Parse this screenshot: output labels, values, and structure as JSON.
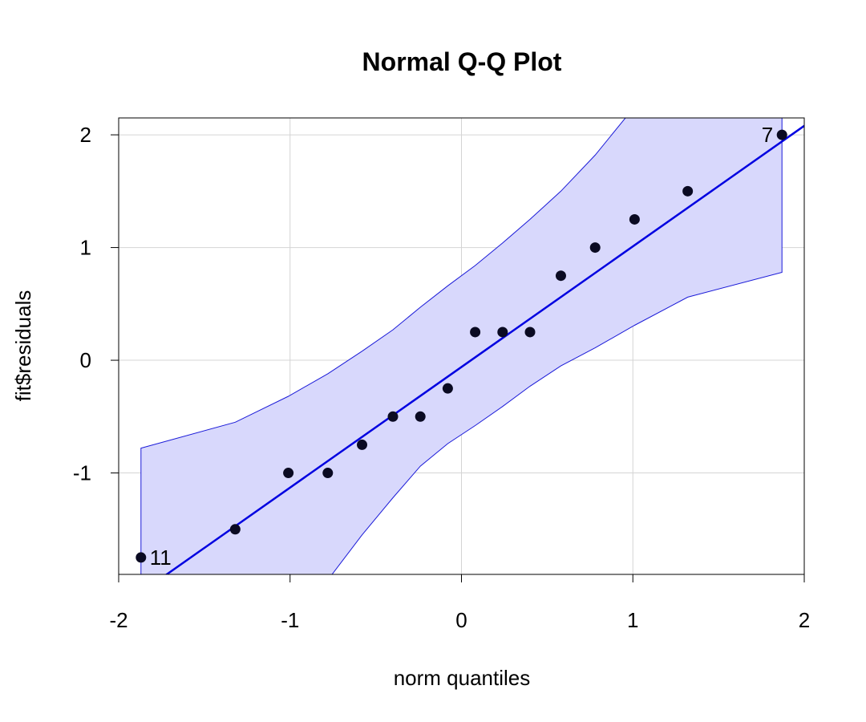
{
  "chart_data": {
    "type": "scatter",
    "title": "Normal Q-Q Plot",
    "xlabel": "norm quantiles",
    "ylabel": "fit$residuals",
    "xlim": [
      -2,
      2
    ],
    "ylim": [
      -1.9,
      2.15
    ],
    "xticks": [
      "-2",
      "-1",
      "0",
      "1",
      "2"
    ],
    "yticks": [
      "-1",
      "0",
      "1",
      "2"
    ],
    "grid": true,
    "colors": {
      "band_fill": "#d8d8fc",
      "band_edge": "#1a1ad8",
      "line": "#0000e0",
      "points": "#0a0a22",
      "grid": "#d4d4d4"
    },
    "points": {
      "x": [
        -1.87,
        -1.32,
        -1.01,
        -0.78,
        -0.58,
        -0.4,
        -0.24,
        -0.08,
        0.08,
        0.24,
        0.4,
        0.58,
        0.78,
        1.01,
        1.32,
        1.87
      ],
      "y": [
        -1.75,
        -1.5,
        -1.0,
        -1.0,
        -0.75,
        -0.5,
        -0.5,
        -0.25,
        0.25,
        0.25,
        0.25,
        0.75,
        1.0,
        1.25,
        1.5,
        2.0
      ]
    },
    "labeled_points": [
      {
        "label": "11",
        "x": -1.87,
        "y": -1.75
      },
      {
        "label": "7",
        "x": 1.87,
        "y": 2.0
      }
    ],
    "reference_line": {
      "slope": 1.07,
      "intercept": -0.06
    },
    "confidence_band": {
      "x": [
        -1.87,
        -1.32,
        -1.01,
        -0.78,
        -0.58,
        -0.4,
        -0.24,
        -0.08,
        0.08,
        0.24,
        0.4,
        0.58,
        0.78,
        1.01,
        1.32,
        1.87
      ],
      "upper": [
        -0.78,
        -0.55,
        -0.32,
        -0.12,
        0.08,
        0.27,
        0.47,
        0.66,
        0.84,
        1.04,
        1.25,
        1.5,
        1.82,
        2.25,
        2.6,
        3.2
      ],
      "lower": [
        -3.5,
        -2.7,
        -2.3,
        -1.95,
        -1.55,
        -1.22,
        -0.94,
        -0.74,
        -0.58,
        -0.41,
        -0.23,
        -0.05,
        0.11,
        0.31,
        0.56,
        0.78
      ]
    }
  }
}
